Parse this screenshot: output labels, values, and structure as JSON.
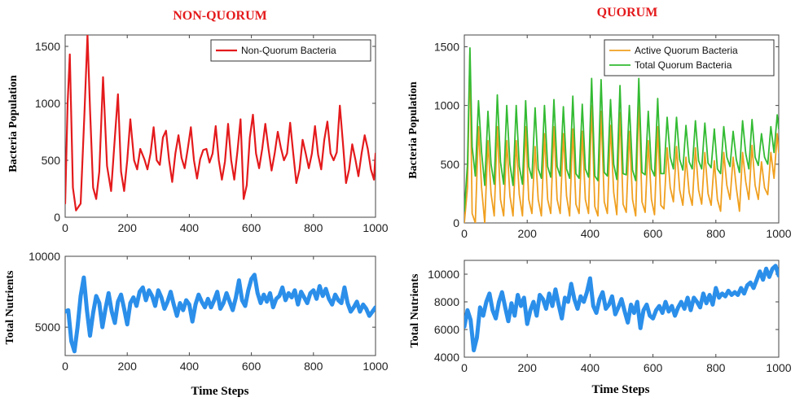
{
  "chart_data": [
    {
      "id": "nq_pop",
      "type": "line",
      "title": "NON-QUORUM",
      "xlabel": "",
      "ylabel": "Bacteria Population",
      "xlim": [
        0,
        1000
      ],
      "ylim": [
        0,
        1600
      ],
      "xticks": [
        "0",
        "200",
        "400",
        "600",
        "800",
        "1000"
      ],
      "yticks": [
        "0",
        "500",
        "1000",
        "1500"
      ],
      "legend": "top-right",
      "series": [
        {
          "name": "Non-Quorum Bacteria",
          "color": "#e41a1c",
          "x": [
            0,
            8,
            15,
            25,
            35,
            50,
            62,
            72,
            80,
            90,
            100,
            110,
            122,
            135,
            148,
            160,
            170,
            180,
            190,
            200,
            210,
            222,
            232,
            242,
            255,
            265,
            275,
            285,
            295,
            305,
            315,
            325,
            335,
            345,
            355,
            365,
            375,
            385,
            395,
            405,
            415,
            425,
            435,
            445,
            455,
            465,
            475,
            485,
            495,
            505,
            515,
            525,
            535,
            545,
            555,
            565,
            575,
            585,
            595,
            605,
            615,
            625,
            635,
            645,
            655,
            665,
            675,
            685,
            695,
            705,
            715,
            725,
            735,
            745,
            755,
            765,
            775,
            785,
            795,
            805,
            815,
            825,
            835,
            845,
            855,
            865,
            875,
            885,
            895,
            905,
            915,
            925,
            935,
            945,
            955,
            965,
            975,
            985,
            995,
            1000
          ],
          "y": [
            120,
            1000,
            1430,
            260,
            60,
            120,
            900,
            1600,
            950,
            260,
            160,
            400,
            1230,
            450,
            230,
            700,
            1080,
            400,
            230,
            500,
            860,
            500,
            420,
            600,
            510,
            420,
            560,
            790,
            500,
            460,
            700,
            760,
            500,
            310,
            560,
            720,
            520,
            430,
            600,
            790,
            500,
            340,
            510,
            590,
            600,
            480,
            560,
            800,
            500,
            330,
            490,
            820,
            500,
            330,
            580,
            860,
            160,
            280,
            700,
            900,
            560,
            430,
            600,
            820,
            600,
            410,
            560,
            750,
            610,
            500,
            560,
            830,
            560,
            300,
            420,
            680,
            560,
            430,
            560,
            800,
            550,
            420,
            680,
            840,
            560,
            500,
            570,
            980,
            650,
            300,
            420,
            640,
            510,
            360,
            560,
            720,
            600,
            420,
            330,
            560
          ]
        }
      ]
    },
    {
      "id": "q_pop",
      "type": "line",
      "title": "QUORUM",
      "xlabel": "",
      "ylabel": "Bacteria Population",
      "xlim": [
        0,
        1000
      ],
      "ylim": [
        0,
        1600
      ],
      "xticks": [
        "0",
        "200",
        "400",
        "600",
        "800",
        "1000"
      ],
      "yticks": [
        "0",
        "500",
        "1000",
        "1500"
      ],
      "legend": "top-right",
      "series": [
        {
          "name": "Active Quorum Bacteria",
          "color": "#f0a020",
          "x": [
            0,
            10,
            18,
            25,
            35,
            45,
            55,
            65,
            75,
            85,
            95,
            105,
            115,
            125,
            135,
            145,
            155,
            165,
            175,
            185,
            195,
            205,
            215,
            225,
            235,
            245,
            255,
            265,
            275,
            285,
            295,
            305,
            315,
            325,
            335,
            345,
            355,
            365,
            375,
            385,
            395,
            405,
            415,
            425,
            435,
            445,
            455,
            465,
            475,
            485,
            495,
            505,
            515,
            525,
            535,
            545,
            555,
            565,
            575,
            585,
            595,
            605,
            615,
            625,
            635,
            645,
            655,
            665,
            675,
            685,
            695,
            705,
            715,
            725,
            735,
            745,
            755,
            765,
            775,
            785,
            795,
            805,
            815,
            825,
            835,
            845,
            855,
            865,
            875,
            885,
            895,
            905,
            915,
            925,
            935,
            945,
            955,
            965,
            975,
            985,
            995,
            1000
          ],
          "y": [
            0,
            300,
            1450,
            80,
            0,
            820,
            300,
            0,
            700,
            250,
            60,
            820,
            200,
            60,
            700,
            230,
            60,
            700,
            240,
            60,
            820,
            200,
            80,
            650,
            200,
            60,
            760,
            200,
            80,
            820,
            200,
            80,
            760,
            230,
            60,
            800,
            160,
            80,
            780,
            200,
            80,
            1000,
            140,
            60,
            950,
            180,
            80,
            830,
            260,
            70,
            940,
            160,
            90,
            780,
            200,
            60,
            1050,
            180,
            90,
            700,
            200,
            70,
            820,
            150,
            120,
            640,
            300,
            180,
            650,
            280,
            150,
            560,
            260,
            150,
            640,
            280,
            160,
            600,
            250,
            150,
            530,
            200,
            100,
            600,
            320,
            200,
            560,
            300,
            100,
            600,
            350,
            200,
            660,
            320,
            200,
            520,
            300,
            240,
            600,
            380,
            760,
            600
          ]
        },
        {
          "name": "Total Quorum Bacteria",
          "color": "#33bb33",
          "x": [
            0,
            10,
            18,
            25,
            35,
            45,
            55,
            65,
            75,
            85,
            95,
            105,
            115,
            125,
            135,
            145,
            155,
            165,
            175,
            185,
            195,
            205,
            215,
            225,
            235,
            245,
            255,
            265,
            275,
            285,
            295,
            305,
            315,
            325,
            335,
            345,
            355,
            365,
            375,
            385,
            395,
            405,
            415,
            425,
            435,
            445,
            455,
            465,
            475,
            485,
            495,
            505,
            515,
            525,
            535,
            545,
            555,
            565,
            575,
            585,
            595,
            605,
            615,
            625,
            635,
            645,
            655,
            665,
            675,
            685,
            695,
            705,
            715,
            725,
            735,
            745,
            755,
            765,
            775,
            785,
            795,
            805,
            815,
            825,
            835,
            845,
            855,
            865,
            875,
            885,
            895,
            905,
            915,
            925,
            935,
            945,
            955,
            965,
            975,
            985,
            995,
            1000
          ],
          "y": [
            100,
            500,
            1490,
            650,
            400,
            1040,
            600,
            320,
            950,
            500,
            330,
            1090,
            520,
            330,
            1000,
            500,
            320,
            1000,
            480,
            330,
            1040,
            480,
            380,
            980,
            460,
            380,
            1000,
            480,
            390,
            1050,
            480,
            400,
            990,
            460,
            380,
            1080,
            420,
            380,
            1010,
            460,
            390,
            1230,
            400,
            360,
            1220,
            430,
            400,
            1050,
            500,
            370,
            1170,
            420,
            410,
            1000,
            450,
            360,
            1230,
            430,
            410,
            950,
            460,
            400,
            1060,
            420,
            420,
            900,
            560,
            460,
            900,
            540,
            450,
            830,
            520,
            460,
            870,
            530,
            460,
            850,
            510,
            470,
            800,
            460,
            420,
            820,
            560,
            480,
            780,
            540,
            430,
            870,
            590,
            460,
            880,
            560,
            490,
            760,
            560,
            500,
            820,
            600,
            920,
            800
          ]
        }
      ]
    },
    {
      "id": "nq_nut",
      "type": "line",
      "title": "",
      "xlabel": "Time Steps",
      "ylabel": "Total Nutrients",
      "xlim": [
        0,
        1000
      ],
      "ylim": [
        3000,
        10000
      ],
      "xticks": [
        "0",
        "200",
        "400",
        "600",
        "800",
        "1000"
      ],
      "yticks": [
        "5000",
        "10000"
      ],
      "series": [
        {
          "name": "",
          "color": "#2b8fea",
          "x": [
            0,
            10,
            20,
            30,
            40,
            50,
            60,
            70,
            80,
            90,
            100,
            110,
            120,
            130,
            140,
            150,
            160,
            170,
            180,
            190,
            200,
            210,
            220,
            230,
            240,
            250,
            260,
            270,
            280,
            290,
            300,
            310,
            320,
            330,
            340,
            350,
            360,
            370,
            380,
            390,
            400,
            410,
            420,
            430,
            440,
            450,
            460,
            470,
            480,
            490,
            500,
            510,
            520,
            530,
            540,
            550,
            560,
            570,
            580,
            590,
            600,
            610,
            620,
            630,
            640,
            650,
            660,
            670,
            680,
            690,
            700,
            710,
            720,
            730,
            740,
            750,
            760,
            770,
            780,
            790,
            800,
            810,
            820,
            830,
            840,
            850,
            860,
            870,
            880,
            890,
            900,
            910,
            920,
            930,
            940,
            950,
            960,
            970,
            980,
            990,
            1000
          ],
          "y": [
            6100,
            6200,
            4000,
            3300,
            5000,
            7200,
            8500,
            6200,
            4400,
            6000,
            7200,
            6700,
            5000,
            6300,
            7400,
            6100,
            5300,
            6800,
            7300,
            6300,
            5200,
            6700,
            7100,
            6500,
            7500,
            7800,
            6900,
            7600,
            7200,
            6500,
            7600,
            7100,
            6300,
            6800,
            7500,
            6600,
            5800,
            6700,
            6200,
            6900,
            6600,
            5400,
            6600,
            7300,
            6800,
            6400,
            7000,
            6400,
            6900,
            7500,
            6300,
            6700,
            7400,
            6800,
            6200,
            7100,
            8300,
            6900,
            6500,
            7600,
            8400,
            8700,
            7400,
            6700,
            7300,
            6800,
            7400,
            6400,
            7000,
            7200,
            7800,
            6900,
            7400,
            7100,
            7600,
            6600,
            7500,
            7100,
            6700,
            7400,
            7600,
            7000,
            7900,
            7200,
            7700,
            7000,
            6600,
            7300,
            6900,
            6700,
            7800,
            6700,
            6100,
            6400,
            6800,
            6100,
            6600,
            6300,
            5800,
            6100,
            6400
          ]
        }
      ]
    },
    {
      "id": "q_nut",
      "type": "line",
      "title": "",
      "xlabel": "Time Steps",
      "ylabel": "Total Nutrients",
      "xlim": [
        0,
        1000
      ],
      "ylim": [
        4000,
        11000
      ],
      "xticks": [
        "0",
        "200",
        "400",
        "600",
        "800",
        "1000"
      ],
      "yticks": [
        "4000",
        "6000",
        "8000",
        "10000"
      ],
      "series": [
        {
          "name": "",
          "color": "#2b8fea",
          "x": [
            0,
            10,
            20,
            30,
            40,
            50,
            60,
            70,
            80,
            90,
            100,
            110,
            120,
            130,
            140,
            150,
            160,
            170,
            180,
            190,
            200,
            210,
            220,
            230,
            240,
            250,
            260,
            270,
            280,
            290,
            300,
            310,
            320,
            330,
            340,
            350,
            360,
            370,
            380,
            390,
            400,
            410,
            420,
            430,
            440,
            450,
            460,
            470,
            480,
            490,
            500,
            510,
            520,
            530,
            540,
            550,
            560,
            570,
            580,
            590,
            600,
            610,
            620,
            630,
            640,
            650,
            660,
            670,
            680,
            690,
            700,
            710,
            720,
            730,
            740,
            750,
            760,
            770,
            780,
            790,
            800,
            810,
            820,
            830,
            840,
            850,
            860,
            870,
            880,
            890,
            900,
            910,
            920,
            930,
            940,
            950,
            960,
            970,
            980,
            990,
            1000
          ],
          "y": [
            6200,
            7400,
            6700,
            4500,
            5400,
            7600,
            7000,
            8000,
            8600,
            7400,
            6800,
            8000,
            8700,
            7600,
            6600,
            7900,
            7000,
            8500,
            7700,
            8300,
            6400,
            7400,
            8000,
            7000,
            8500,
            8200,
            7500,
            8600,
            7700,
            8900,
            7800,
            6800,
            8300,
            8000,
            9300,
            8200,
            7500,
            8400,
            8000,
            8700,
            9700,
            7700,
            7200,
            8200,
            8700,
            7500,
            7800,
            8400,
            7100,
            7600,
            8200,
            7300,
            6500,
            7800,
            7200,
            8000,
            6100,
            7400,
            7800,
            7000,
            6800,
            7400,
            7700,
            7200,
            8000,
            7300,
            7700,
            7000,
            7600,
            8000,
            7500,
            8300,
            7400,
            8300,
            8000,
            7600,
            8600,
            7900,
            8500,
            7800,
            9000,
            8300,
            8600,
            8400,
            8800,
            8500,
            8700,
            8500,
            9000,
            8600,
            9200,
            9400,
            9000,
            9600,
            10200,
            9600,
            10400,
            9800,
            10400,
            10600,
            9900
          ]
        }
      ]
    }
  ]
}
